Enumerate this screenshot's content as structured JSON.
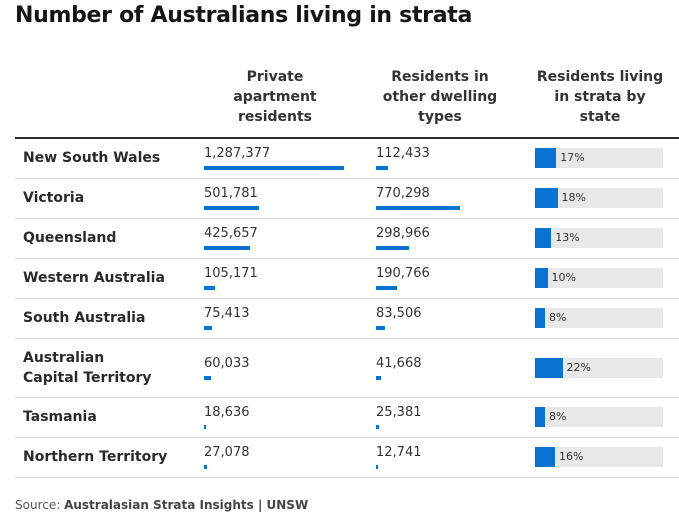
{
  "title": "Number of Australians living in strata",
  "columns": {
    "private": [
      "Private",
      "apartment",
      "residents"
    ],
    "other": [
      "Residents in",
      "other dwelling",
      "types"
    ],
    "share": [
      "Residents living",
      "in strata by",
      "state"
    ]
  },
  "source": {
    "prefix": "Source: ",
    "name": "Australasian Strata Insights | UNSW"
  },
  "colors": {
    "bar": "#0a73d1",
    "track": "#e8e8e8"
  },
  "chart_data": {
    "type": "table",
    "title": "Number of Australians living in strata",
    "columns": [
      "Private apartment residents",
      "Residents in other dwelling types",
      "Residents living in strata by state"
    ],
    "rows": [
      {
        "state": "New South Wales",
        "private": 1287377,
        "private_label": "1,287,377",
        "other": 112433,
        "other_label": "112,433",
        "share": 17,
        "share_label": "17%"
      },
      {
        "state": "Victoria",
        "private": 501781,
        "private_label": "501,781",
        "other": 770298,
        "other_label": "770,298",
        "share": 18,
        "share_label": "18%"
      },
      {
        "state": "Queensland",
        "private": 425657,
        "private_label": "425,657",
        "other": 298966,
        "other_label": "298,966",
        "share": 13,
        "share_label": "13%"
      },
      {
        "state": "Western Australia",
        "private": 105171,
        "private_label": "105,171",
        "other": 190766,
        "other_label": "190,766",
        "share": 10,
        "share_label": "10%"
      },
      {
        "state": "South Australia",
        "private": 75413,
        "private_label": "75,413",
        "other": 83506,
        "other_label": "83,506",
        "share": 8,
        "share_label": "8%"
      },
      {
        "state": "Australian Capital Territory",
        "private": 60033,
        "private_label": "60,033",
        "other": 41668,
        "other_label": "41,668",
        "share": 22,
        "share_label": "22%"
      },
      {
        "state": "Tasmania",
        "private": 18636,
        "private_label": "18,636",
        "other": 25381,
        "other_label": "25,381",
        "share": 8,
        "share_label": "8%"
      },
      {
        "state": "Northern Territory",
        "private": 27078,
        "private_label": "27,078",
        "other": 12741,
        "other_label": "12,741",
        "share": 16,
        "share_label": "16%"
      }
    ]
  }
}
